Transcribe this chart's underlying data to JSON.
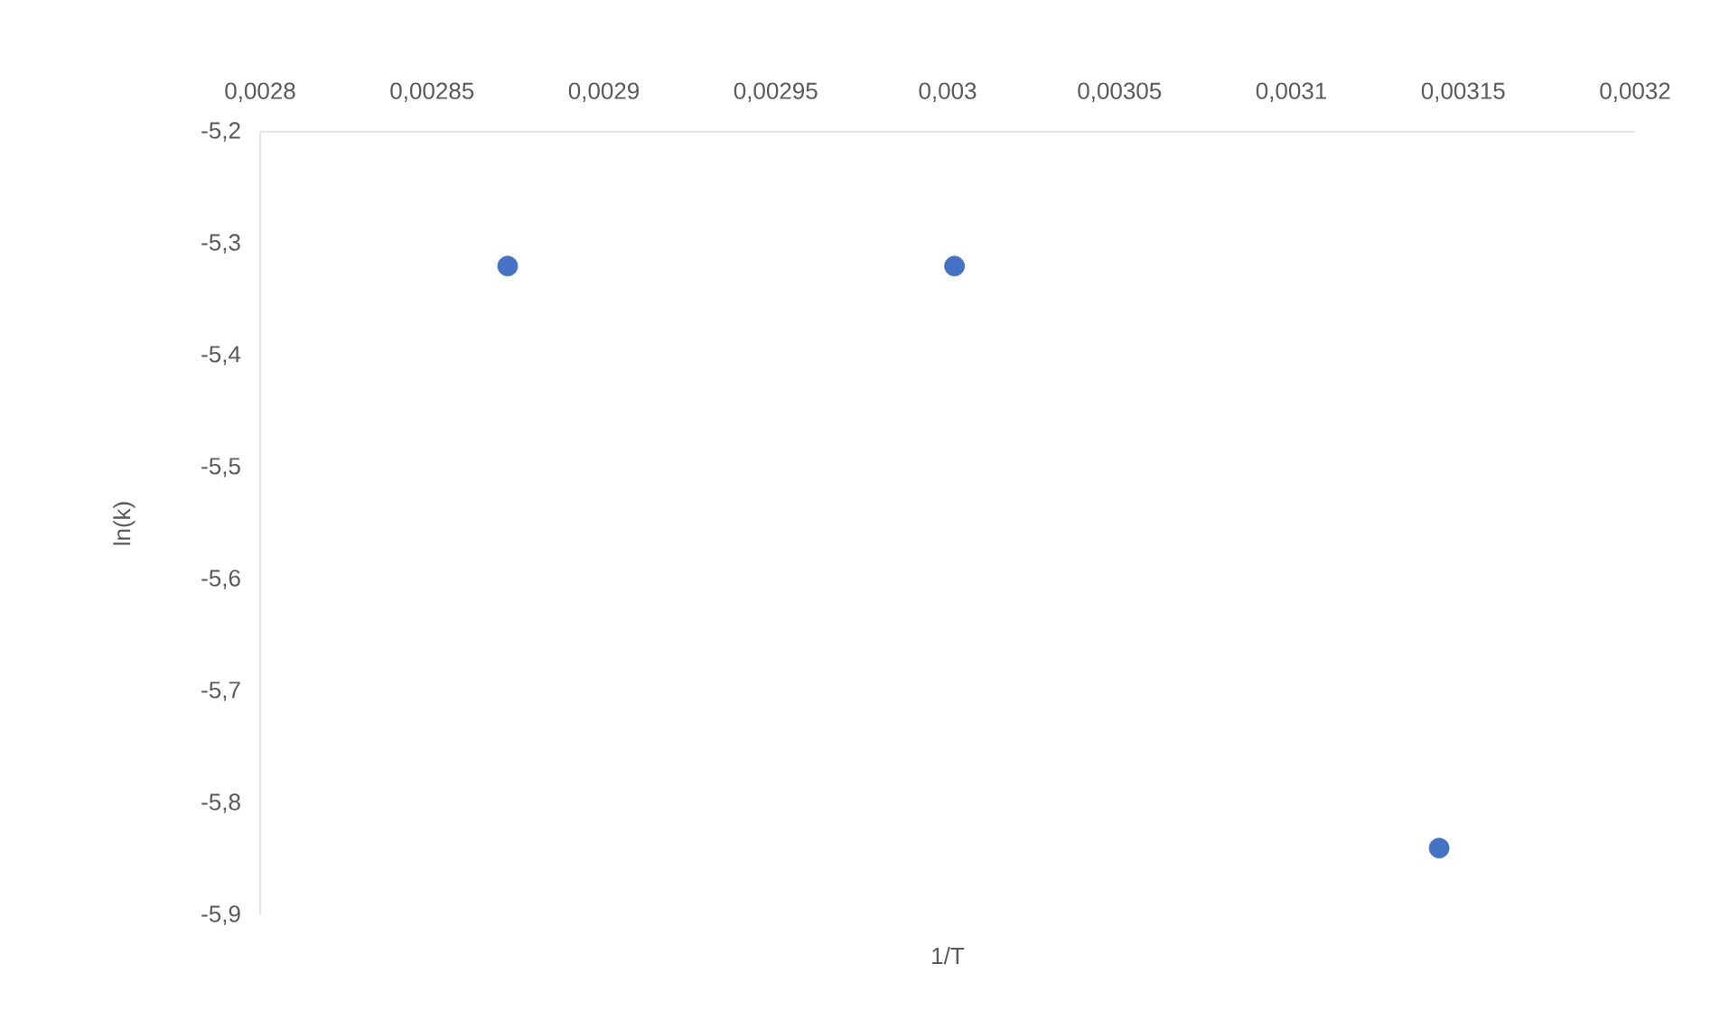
{
  "chart_data": {
    "type": "scatter",
    "xlabel": "1/T",
    "ylabel": "ln(k)",
    "x": [
      0.002872,
      0.003002,
      0.003143
    ],
    "series": [
      {
        "color": "#4472c4",
        "values": [
          -5.32,
          -5.32,
          -5.84
        ]
      }
    ],
    "xlim": [
      0.0028,
      0.0032
    ],
    "xticks": [
      {
        "value": 0.0028,
        "label": "0,0028"
      },
      {
        "value": 0.00285,
        "label": "0,00285"
      },
      {
        "value": 0.0029,
        "label": "0,0029"
      },
      {
        "value": 0.00295,
        "label": "0,00295"
      },
      {
        "value": 0.003,
        "label": "0,003"
      },
      {
        "value": 0.00305,
        "label": "0,00305"
      },
      {
        "value": 0.0031,
        "label": "0,0031"
      },
      {
        "value": 0.00315,
        "label": "0,00315"
      },
      {
        "value": 0.0032,
        "label": "0,0032"
      }
    ],
    "ylim": [
      -5.9,
      -5.2
    ],
    "yticks": [
      {
        "value": -5.9,
        "label": "-5,9"
      },
      {
        "value": -5.8,
        "label": "-5,8"
      },
      {
        "value": -5.7,
        "label": "-5,7"
      },
      {
        "value": -5.6,
        "label": "-5,6"
      },
      {
        "value": -5.5,
        "label": "-5,5"
      },
      {
        "value": -5.4,
        "label": "-5,4"
      },
      {
        "value": -5.3,
        "label": "-5,3"
      },
      {
        "value": -5.2,
        "label": "-5,2"
      }
    ],
    "grid": false
  }
}
